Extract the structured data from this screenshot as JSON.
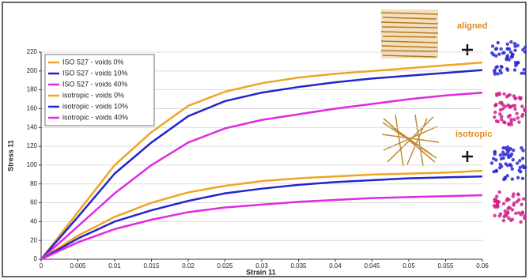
{
  "chart_data": {
    "type": "line",
    "x_label": "Strain 11",
    "y_label": "Stress 11",
    "annotations": [
      "aligned",
      "isotropic"
    ],
    "annotation_color": "#e08a1e",
    "x": [
      0,
      0.005,
      0.01,
      0.015,
      0.02,
      0.025,
      0.03,
      0.035,
      0.04,
      0.045,
      0.05,
      0.055,
      0.06
    ],
    "xlim": [
      0,
      0.06
    ],
    "xticks": [
      0,
      0.005,
      0.01,
      0.015,
      0.02,
      0.025,
      0.03,
      0.035,
      0.04,
      0.045,
      0.05,
      0.055,
      0.06
    ],
    "ylim": [
      0,
      220
    ],
    "yticks": [
      0,
      20,
      40,
      60,
      80,
      100,
      120,
      140,
      160,
      180,
      200,
      220
    ],
    "grid": true,
    "legend": "upper-left",
    "series": [
      {
        "name": "ISO 527 - voids 0%",
        "color": "#f0a424",
        "values": [
          0,
          50,
          100,
          135,
          163,
          178,
          187,
          193,
          197,
          200,
          203,
          206,
          209
        ]
      },
      {
        "name": "ISO 527 - voids 10%",
        "color": "#2424cc",
        "values": [
          0,
          45,
          91,
          124,
          152,
          168,
          177,
          183,
          188,
          192,
          195,
          198,
          201
        ]
      },
      {
        "name": "ISO 527 - voids 40%",
        "color": "#e02ae0",
        "values": [
          0,
          35,
          70,
          100,
          124,
          139,
          148,
          154,
          160,
          165,
          170,
          174,
          177
        ]
      },
      {
        "name": "isotropic - voids 0%",
        "color": "#f0a424",
        "values": [
          0,
          25,
          45,
          60,
          71,
          78,
          83,
          86,
          88,
          90,
          91,
          92,
          94
        ]
      },
      {
        "name": "isotropic - voids 10%",
        "color": "#2424cc",
        "values": [
          0,
          22,
          40,
          52,
          62,
          70,
          75,
          79,
          82,
          84,
          86,
          87,
          88
        ]
      },
      {
        "name": "isotropic - voids 40%",
        "color": "#e02ae0",
        "values": [
          0,
          18,
          32,
          42,
          50,
          55,
          58,
          61,
          63,
          65,
          66,
          67,
          68
        ]
      }
    ]
  }
}
